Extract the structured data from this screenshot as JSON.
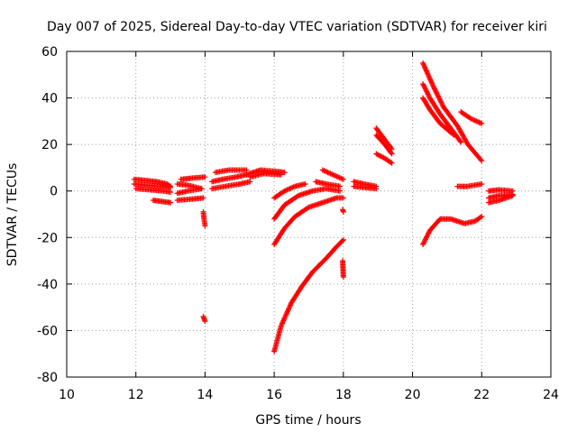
{
  "chart_data": {
    "type": "scatter",
    "title": "Day 007 of 2025, Sidereal Day-to-day VTEC variation (SDTVAR) for receiver kiri",
    "xlabel": "GPS time / hours",
    "ylabel": "SDTVAR / TECUs",
    "xlim": [
      10,
      24
    ],
    "ylim": [
      -80,
      60
    ],
    "xticks": [
      "10",
      "12",
      "14",
      "16",
      "18",
      "20",
      "22",
      "24"
    ],
    "yticks": [
      "-80",
      "-60",
      "-40",
      "-20",
      "0",
      "20",
      "40",
      "60"
    ],
    "grid": true,
    "marker": "plus",
    "color": "#ff0000",
    "segments": [
      {
        "x": [
          11.95,
          12.3,
          12.6,
          12.9,
          13.0
        ],
        "y": [
          5,
          4.5,
          4,
          3,
          2
        ]
      },
      {
        "x": [
          11.95,
          12.3,
          12.7,
          13.0
        ],
        "y": [
          3,
          2.5,
          2,
          1.5
        ]
      },
      {
        "x": [
          12.0,
          12.4,
          12.8,
          13.0
        ],
        "y": [
          1,
          0.5,
          0,
          -0.5
        ]
      },
      {
        "x": [
          12.5,
          12.75,
          13.0
        ],
        "y": [
          -4,
          -4.5,
          -5
        ]
      },
      {
        "x": [
          13.2,
          13.5,
          13.9
        ],
        "y": [
          3,
          2.5,
          1
        ]
      },
      {
        "x": [
          13.2,
          13.5,
          13.9
        ],
        "y": [
          -1,
          0,
          1
        ]
      },
      {
        "x": [
          13.3,
          13.6,
          14.0
        ],
        "y": [
          5,
          5.5,
          6
        ]
      },
      {
        "x": [
          13.2,
          13.6,
          13.95
        ],
        "y": [
          -4,
          -3.5,
          -3
        ]
      },
      {
        "x": [
          13.95,
          13.97,
          14.0
        ],
        "y": [
          -9,
          -12,
          -15
        ]
      },
      {
        "x": [
          13.95,
          14.0
        ],
        "y": [
          -54,
          -56
        ]
      },
      {
        "x": [
          14.2,
          14.5,
          14.9,
          15.2
        ],
        "y": [
          4,
          5,
          6,
          7
        ]
      },
      {
        "x": [
          14.2,
          14.6,
          15.0,
          15.3
        ],
        "y": [
          1,
          2,
          3,
          4
        ]
      },
      {
        "x": [
          14.3,
          14.7,
          15.2
        ],
        "y": [
          8,
          9,
          9
        ]
      },
      {
        "x": [
          15.2,
          15.6,
          16.0,
          16.3
        ],
        "y": [
          7,
          9,
          8.5,
          8
        ]
      },
      {
        "x": [
          15.3,
          15.7,
          16.2
        ],
        "y": [
          6,
          7.5,
          7
        ]
      },
      {
        "x": [
          16.0,
          16.3,
          16.6,
          16.9
        ],
        "y": [
          -3,
          0,
          2,
          3
        ]
      },
      {
        "x": [
          16.0,
          16.3,
          16.7,
          17.1,
          17.5,
          17.9
        ],
        "y": [
          -12,
          -6,
          -2,
          0,
          1,
          0
        ]
      },
      {
        "x": [
          16.0,
          16.3,
          16.6,
          17.0,
          17.4,
          17.8,
          18.0
        ],
        "y": [
          -23,
          -16,
          -11,
          -7,
          -5,
          -3,
          -3
        ]
      },
      {
        "x": [
          17.2,
          17.5,
          17.9
        ],
        "y": [
          4,
          3,
          2
        ]
      },
      {
        "x": [
          17.4,
          17.7,
          18.0
        ],
        "y": [
          9,
          7,
          5
        ]
      },
      {
        "x": [
          16.0,
          16.2,
          16.5,
          16.8,
          17.1,
          17.5,
          17.8,
          18.0
        ],
        "y": [
          -69,
          -58,
          -48,
          -41,
          -35,
          -29,
          -24,
          -21
        ]
      },
      {
        "x": [
          17.98,
          18.0
        ],
        "y": [
          -30,
          -37
        ]
      },
      {
        "x": [
          17.98,
          18.0
        ],
        "y": [
          -8,
          -9
        ]
      },
      {
        "x": [
          18.3,
          18.6,
          18.95
        ],
        "y": [
          4,
          3,
          2
        ]
      },
      {
        "x": [
          18.3,
          18.6,
          18.95
        ],
        "y": [
          2,
          1.5,
          1
        ]
      },
      {
        "x": [
          18.95,
          19.2,
          19.4
        ],
        "y": [
          27,
          22,
          18
        ]
      },
      {
        "x": [
          18.95,
          19.2,
          19.4
        ],
        "y": [
          24,
          20,
          16
        ]
      },
      {
        "x": [
          18.95,
          19.2,
          19.4
        ],
        "y": [
          16,
          14,
          12
        ]
      },
      {
        "x": [
          20.3,
          20.6,
          20.9,
          21.3,
          21.6,
          22.0
        ],
        "y": [
          55,
          45,
          36,
          28,
          20,
          13
        ]
      },
      {
        "x": [
          20.3,
          20.5,
          20.8,
          21.1,
          21.4
        ],
        "y": [
          46,
          40,
          33,
          27,
          21
        ]
      },
      {
        "x": [
          20.3,
          20.5,
          20.8,
          21.2
        ],
        "y": [
          40,
          35,
          29,
          24
        ]
      },
      {
        "x": [
          21.4,
          21.7,
          22.0
        ],
        "y": [
          34,
          31,
          29
        ]
      },
      {
        "x": [
          21.3,
          21.6,
          22.0
        ],
        "y": [
          2,
          2,
          3
        ]
      },
      {
        "x": [
          20.3,
          20.5,
          20.8,
          21.1,
          21.5,
          21.8,
          22.0
        ],
        "y": [
          -23,
          -17,
          -12,
          -12,
          -14,
          -13,
          -11
        ]
      },
      {
        "x": [
          22.2,
          22.5,
          22.9
        ],
        "y": [
          0,
          0.5,
          0
        ]
      },
      {
        "x": [
          22.2,
          22.5,
          22.9
        ],
        "y": [
          -3,
          -2,
          -1.5
        ]
      },
      {
        "x": [
          22.2,
          22.5,
          22.9
        ],
        "y": [
          -5,
          -4,
          -2
        ]
      }
    ]
  }
}
